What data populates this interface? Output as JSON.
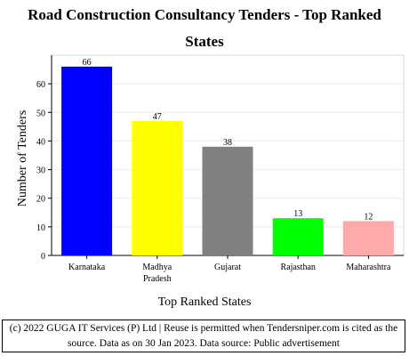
{
  "chart_data": {
    "type": "bar",
    "title_line1": "Road Construction Consultancy Tenders - Top Ranked",
    "title_line2": "States",
    "xlabel": "Top Ranked States",
    "ylabel": "Number of Tenders",
    "categories": [
      [
        "Karnataka"
      ],
      [
        "Madhya",
        "Pradesh"
      ],
      [
        "Gujarat"
      ],
      [
        "Rajasthan"
      ],
      [
        "Maharashtra"
      ]
    ],
    "values": [
      66,
      47,
      38,
      13,
      12
    ],
    "colors": [
      "#0000ff",
      "#ffff00",
      "#808080",
      "#00ff00",
      "#ffaaaa"
    ],
    "ylim": [
      0,
      70
    ],
    "yticks": [
      0,
      10,
      20,
      30,
      40,
      50,
      60
    ],
    "grid": true,
    "legend": "none"
  },
  "footer": {
    "line1": "(c) 2022 GUGA IT Services (P) Ltd | Reuse is permitted when Tendersniper.com is cited as the",
    "line2": "source. Data as on 30 Jan 2023. Data source: Public advertisement"
  }
}
